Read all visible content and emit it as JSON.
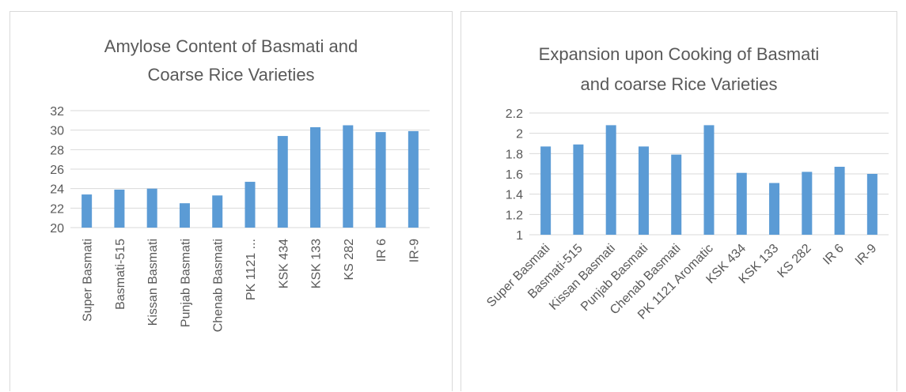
{
  "chart_data": [
    {
      "type": "bar",
      "title_lines": [
        "Amylose Content of Basmati and",
        "Coarse Rice Varieties"
      ],
      "categories": [
        "Super Basmati",
        "Basmati-515",
        "Kissan Basmati",
        "Punjab Basmati",
        "Chenab Basmati",
        "PK 1121 ...",
        "KSK 434",
        "KSK 133",
        "KS 282",
        "IR 6",
        "IR-9"
      ],
      "values": [
        23.4,
        23.9,
        24.0,
        22.5,
        23.3,
        24.7,
        29.4,
        30.3,
        30.5,
        29.8,
        29.9
      ],
      "ylim": [
        20,
        32
      ],
      "yticks": [
        20,
        22,
        24,
        26,
        28,
        30,
        32
      ],
      "ytick_labels": [
        "20",
        "22",
        "24",
        "26",
        "28",
        "30",
        "32"
      ],
      "grid": true,
      "legend": "none",
      "xlabel": "",
      "ylabel": "",
      "color": "#5b9bd5"
    },
    {
      "type": "bar",
      "title_lines": [
        "Expansion upon Cooking of Basmati",
        "and coarse Rice Varieties"
      ],
      "categories": [
        "Super Basmati",
        "Basmati-515",
        "Kissan Basmati",
        "Punjab Basmati",
        "Chenab Basmati",
        "PK 1121 Aromatic",
        "KSK 434",
        "KSK 133",
        "KS 282",
        "IR 6",
        "IR-9"
      ],
      "values": [
        1.87,
        1.89,
        2.08,
        1.87,
        1.79,
        2.08,
        1.61,
        1.51,
        1.62,
        1.67,
        1.6
      ],
      "ylim": [
        1,
        2.2
      ],
      "yticks": [
        1,
        1.2,
        1.4,
        1.6,
        1.8,
        2,
        2.2
      ],
      "ytick_labels": [
        "1",
        "1.2",
        "1.4",
        "1.6",
        "1.8",
        "2",
        "2.2"
      ],
      "grid": true,
      "legend": "none",
      "xlabel": "",
      "ylabel": "",
      "color": "#5b9bd5"
    }
  ]
}
